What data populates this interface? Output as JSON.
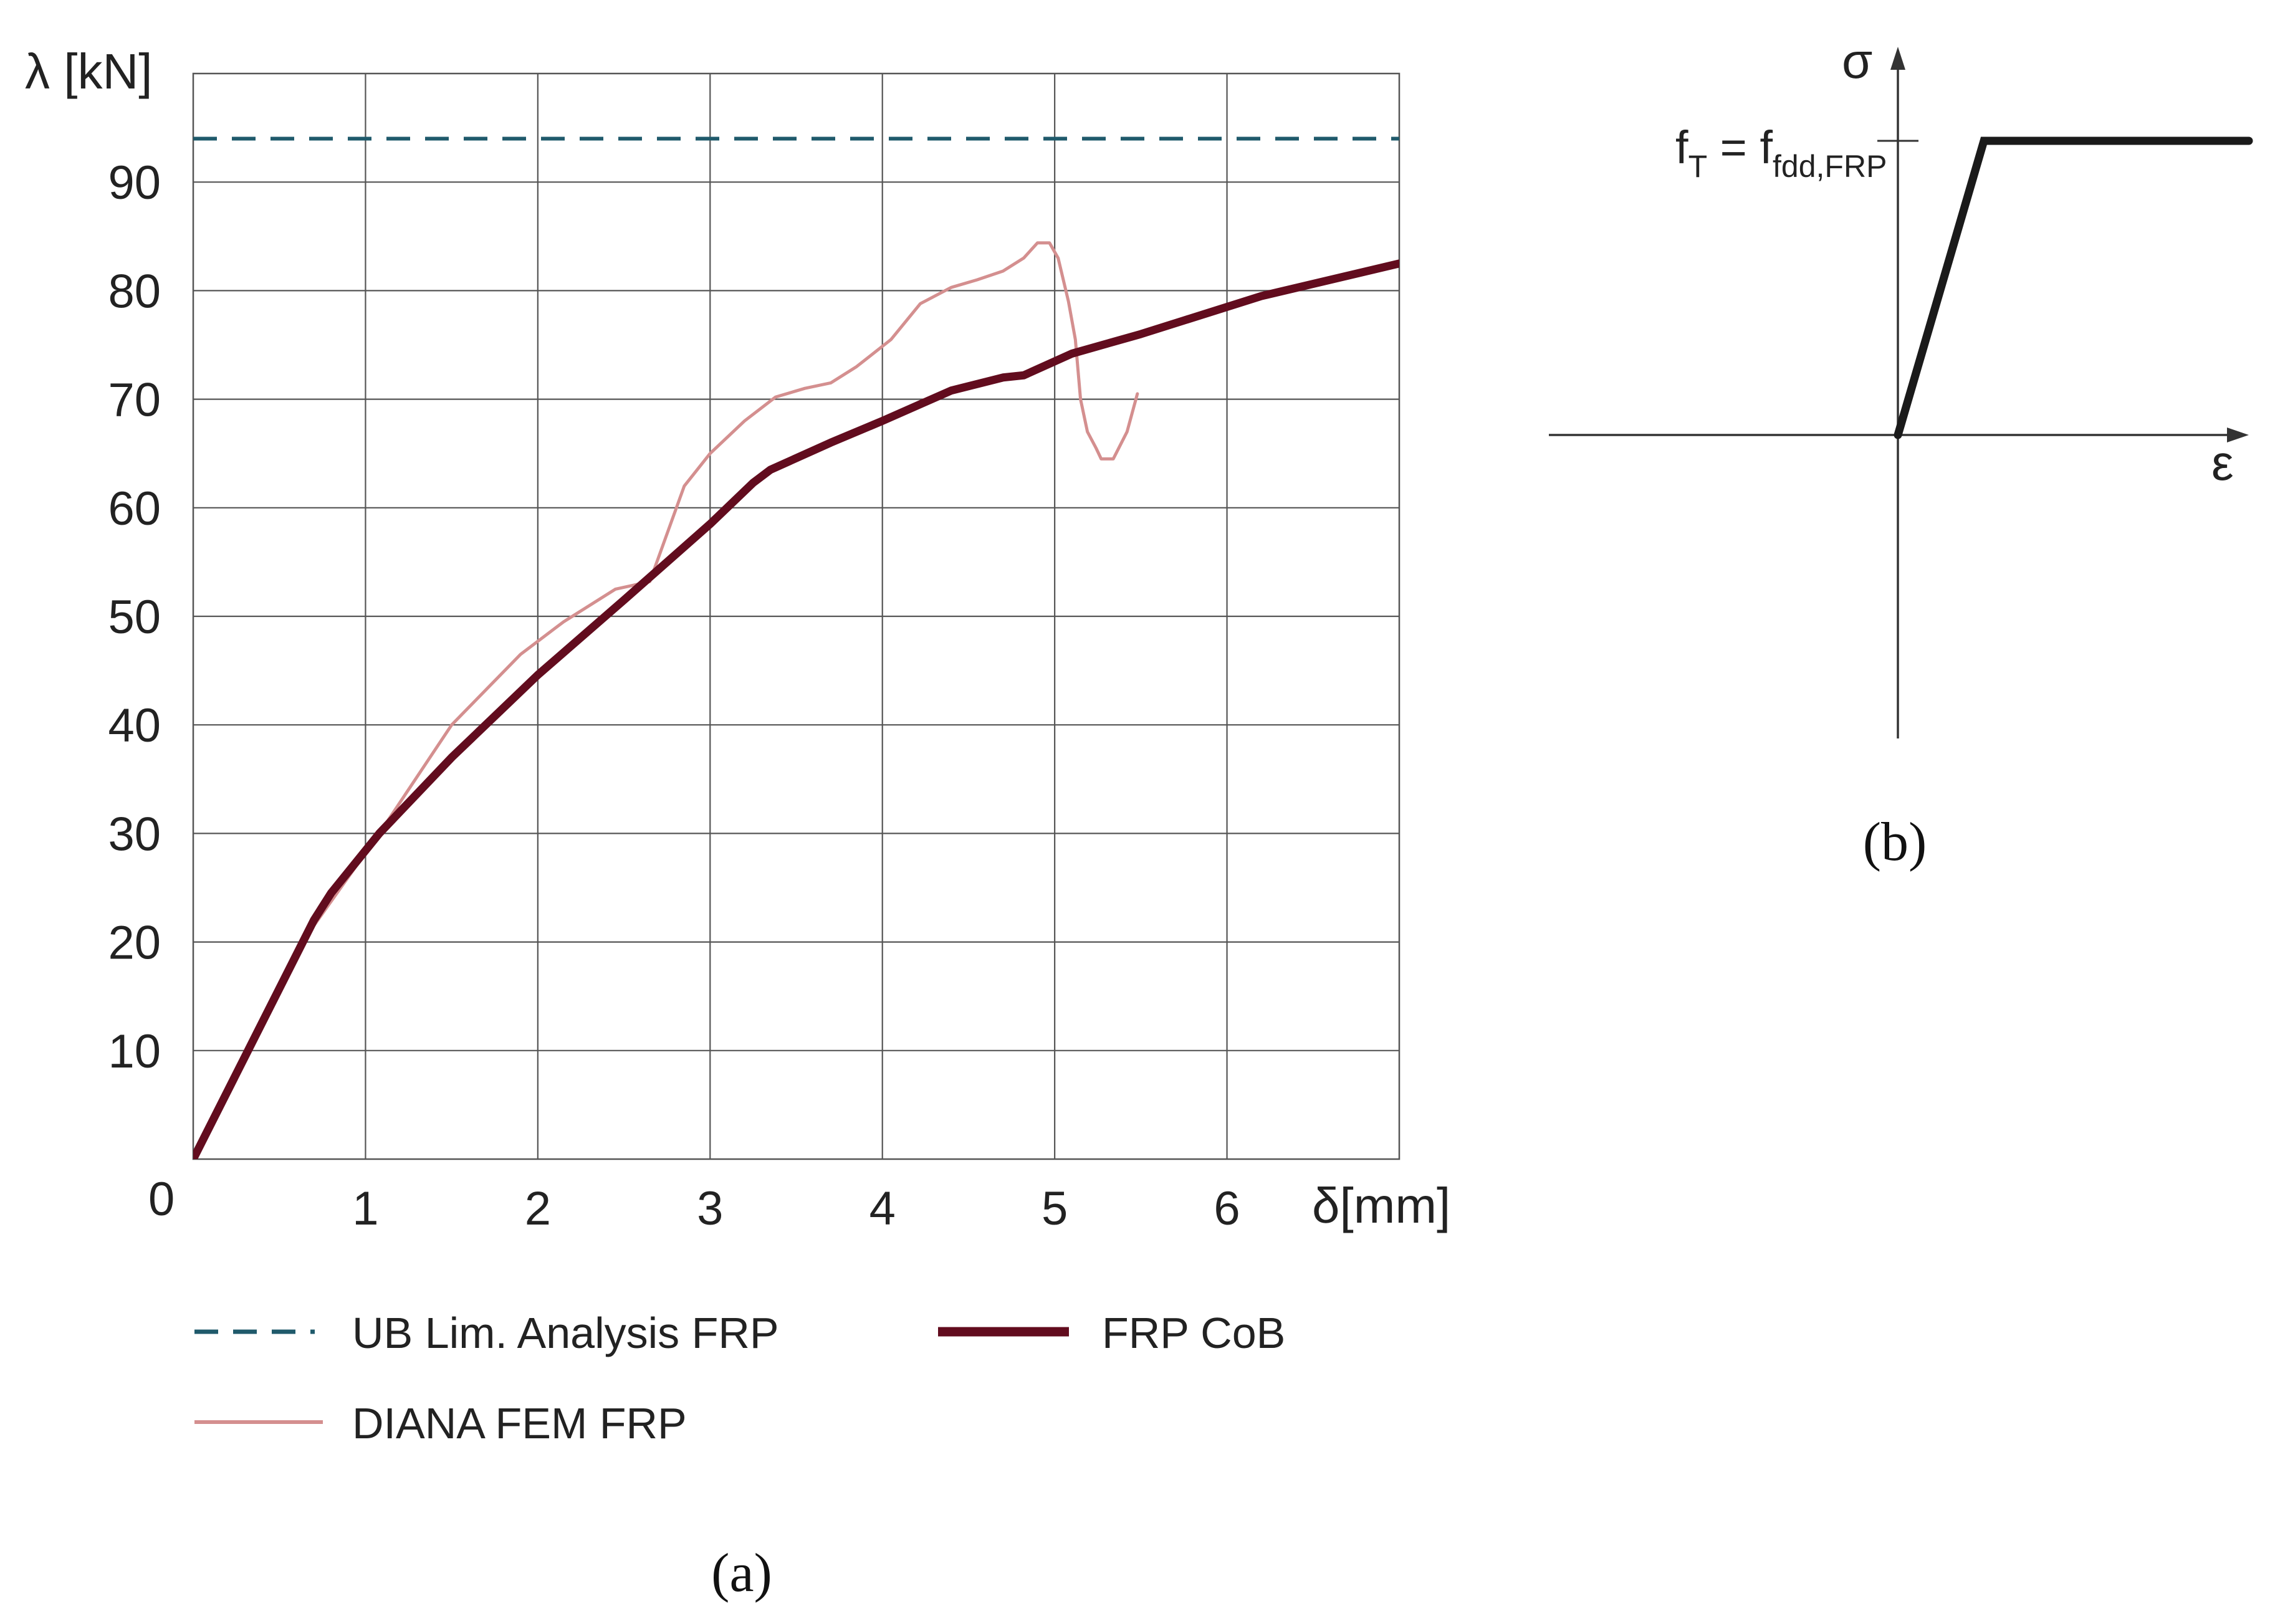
{
  "panel_a_label": "(a)",
  "panel_b_label": "(b)",
  "chart_data": [
    {
      "type": "line",
      "title": "",
      "xlabel": "δ[mm]",
      "ylabel": "λ [kN]",
      "xlim": [
        0,
        7
      ],
      "ylim": [
        0,
        100
      ],
      "x_ticks": [
        1,
        2,
        3,
        4,
        5,
        6
      ],
      "y_ticks": [
        10,
        20,
        30,
        40,
        50,
        60,
        70,
        80,
        90
      ],
      "origin_label": "0",
      "grid": true,
      "legend_placement": "bottom",
      "series": [
        {
          "name": "UB Lim. Analysis FRP",
          "style": "dashed",
          "color": "#1f5a6b",
          "points": [
            [
              0,
              94
            ],
            [
              7,
              94
            ]
          ]
        },
        {
          "name": "FRP CoB",
          "style": "solid-thick",
          "color": "#620c1e",
          "points": [
            [
              0,
              0
            ],
            [
              0.7,
              22
            ],
            [
              0.8,
              24.5
            ],
            [
              1.08,
              30
            ],
            [
              1.5,
              37
            ],
            [
              2.0,
              44.6
            ],
            [
              2.5,
              51.5
            ],
            [
              3.0,
              58.5
            ],
            [
              3.25,
              62.3
            ],
            [
              3.35,
              63.5
            ],
            [
              3.7,
              66
            ],
            [
              4.0,
              68
            ],
            [
              4.4,
              70.8
            ],
            [
              4.7,
              72
            ],
            [
              4.82,
              72.2
            ],
            [
              5.1,
              74.2
            ],
            [
              5.5,
              76
            ],
            [
              6.2,
              79.5
            ],
            [
              7.0,
              82.5
            ]
          ]
        },
        {
          "name": "DIANA FEM FRP",
          "style": "solid-thin",
          "color": "#d48f8f",
          "points": [
            [
              0,
              0
            ],
            [
              0.7,
              21.5
            ],
            [
              1.08,
              30
            ],
            [
              1.5,
              40
            ],
            [
              1.9,
              46.5
            ],
            [
              2.15,
              49.5
            ],
            [
              2.45,
              52.5
            ],
            [
              2.65,
              53.2
            ],
            [
              2.85,
              62
            ],
            [
              3.0,
              65
            ],
            [
              3.2,
              68
            ],
            [
              3.38,
              70.2
            ],
            [
              3.55,
              71
            ],
            [
              3.7,
              71.5
            ],
            [
              3.85,
              73
            ],
            [
              4.05,
              75.5
            ],
            [
              4.22,
              78.8
            ],
            [
              4.4,
              80.3
            ],
            [
              4.55,
              81
            ],
            [
              4.7,
              81.8
            ],
            [
              4.82,
              83
            ],
            [
              4.9,
              84.4
            ],
            [
              4.97,
              84.4
            ],
            [
              5.02,
              83
            ],
            [
              5.08,
              79
            ],
            [
              5.12,
              75.5
            ],
            [
              5.15,
              70
            ],
            [
              5.19,
              67
            ],
            [
              5.24,
              65.5
            ],
            [
              5.27,
              64.5
            ],
            [
              5.34,
              64.5
            ],
            [
              5.42,
              67
            ],
            [
              5.48,
              70.5
            ]
          ]
        }
      ]
    },
    {
      "type": "line",
      "title": "",
      "xlabel": "ε",
      "ylabel": "σ",
      "ylevel_label": {
        "main": "f",
        "sub1": "T",
        "equals": " = f",
        "sub2": "fdd,FRP"
      },
      "grid": false,
      "series": [
        {
          "color": "#1a1a1a",
          "points": [
            [
              0,
              0
            ],
            [
              1,
              1
            ],
            [
              4,
              1
            ]
          ]
        }
      ]
    }
  ]
}
